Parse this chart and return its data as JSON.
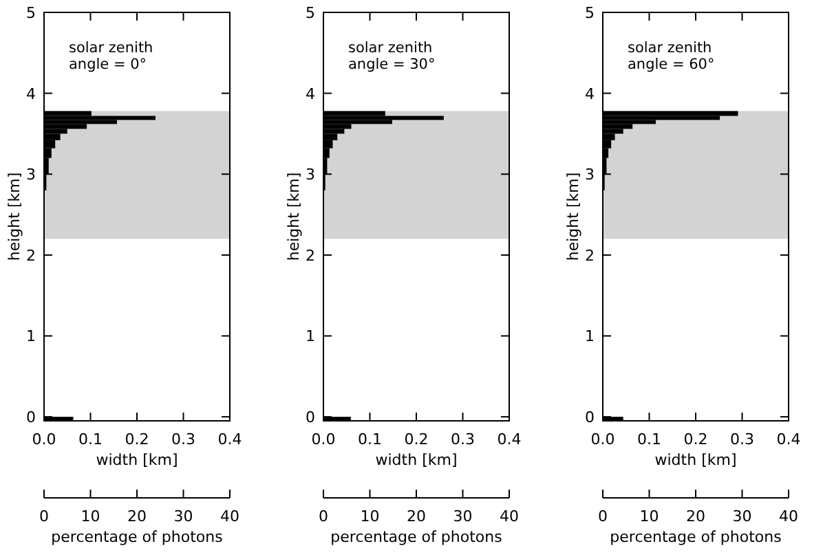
{
  "chart_data": [
    {
      "type": "histogram",
      "orientation": "horizontal",
      "annotations": [
        "solar zenith\nangle = 0°"
      ],
      "xlabel": "width [km]",
      "ylabel": "height [km]",
      "x2label": "percentage of photons",
      "xlim": [
        0,
        0.4
      ],
      "xticks": [
        {
          "value": 0,
          "label": "0.0"
        },
        {
          "value": 0.1,
          "label": "0.1"
        },
        {
          "value": 0.2,
          "label": "0.2"
        },
        {
          "value": 0.3,
          "label": "0.3"
        },
        {
          "value": 0.4,
          "label": "0.4"
        }
      ],
      "ylim": [
        -0.05,
        5
      ],
      "yticks": [
        0,
        1,
        2,
        3,
        4,
        5
      ],
      "x2lim": [
        0,
        40
      ],
      "x2ticks": [
        0,
        10,
        20,
        30,
        40
      ],
      "bands": [
        {
          "axis": "y",
          "from": 2.2,
          "to": 3.78,
          "color": "#d3d3d3"
        }
      ],
      "bins": [
        -0.05,
        0,
        2.8,
        3.0,
        3.2,
        3.32,
        3.42,
        3.5,
        3.56,
        3.62,
        3.67,
        3.72,
        3.78
      ],
      "series": [
        {
          "color": "#000000",
          "axis": "x2",
          "values": [
            6.3,
            null,
            0.5,
            1,
            1.6,
            2.4,
            3.5,
            5,
            9.2,
            15.7,
            24,
            10.2
          ]
        }
      ]
    },
    {
      "type": "histogram",
      "orientation": "horizontal",
      "annotations": [
        "solar zenith\nangle = 30°"
      ],
      "xlabel": "width [km]",
      "ylabel": "height [km]",
      "x2label": "percentage of photons",
      "xlim": [
        0,
        0.4
      ],
      "xticks": [
        {
          "value": 0,
          "label": "0.0"
        },
        {
          "value": 0.1,
          "label": "0.1"
        },
        {
          "value": 0.2,
          "label": "0.2"
        },
        {
          "value": 0.3,
          "label": "0.3"
        },
        {
          "value": 0.4,
          "label": "0.4"
        }
      ],
      "ylim": [
        -0.05,
        5
      ],
      "yticks": [
        0,
        1,
        2,
        3,
        4,
        5
      ],
      "x2lim": [
        0,
        40
      ],
      "x2ticks": [
        0,
        10,
        20,
        30,
        40
      ],
      "bands": [
        {
          "axis": "y",
          "from": 2.2,
          "to": 3.78,
          "color": "#d3d3d3"
        }
      ],
      "bins": [
        -0.05,
        0,
        2.6,
        2.8,
        3.0,
        3.2,
        3.32,
        3.42,
        3.5,
        3.56,
        3.62,
        3.67,
        3.72,
        3.78
      ],
      "series": [
        {
          "color": "#000000",
          "axis": "x2",
          "values": [
            5.9,
            null,
            0.1,
            0.4,
            0.8,
            1.3,
            2,
            3,
            4.5,
            6,
            14.8,
            25.9,
            13.3
          ]
        }
      ]
    },
    {
      "type": "histogram",
      "orientation": "horizontal",
      "annotations": [
        "solar zenith\nangle = 60°"
      ],
      "xlabel": "width [km]",
      "ylabel": "height [km]",
      "x2label": "percentage of photons",
      "xlim": [
        0,
        0.4
      ],
      "xticks": [
        {
          "value": 0,
          "label": "0.0"
        },
        {
          "value": 0.1,
          "label": "0.1"
        },
        {
          "value": 0.2,
          "label": "0.2"
        },
        {
          "value": 0.3,
          "label": "0.3"
        },
        {
          "value": 0.4,
          "label": "0.4"
        }
      ],
      "ylim": [
        -0.05,
        5
      ],
      "yticks": [
        0,
        1,
        2,
        3,
        4,
        5
      ],
      "x2lim": [
        0,
        40
      ],
      "x2ticks": [
        0,
        10,
        20,
        30,
        40
      ],
      "bands": [
        {
          "axis": "y",
          "from": 2.2,
          "to": 3.78,
          "color": "#d3d3d3"
        }
      ],
      "bins": [
        -0.05,
        0,
        2.8,
        3.0,
        3.2,
        3.32,
        3.42,
        3.5,
        3.56,
        3.62,
        3.67,
        3.72,
        3.78
      ],
      "series": [
        {
          "color": "#000000",
          "axis": "x2",
          "values": [
            4.4,
            null,
            0.4,
            0.8,
            1.2,
            1.8,
            2.6,
            4.4,
            6.4,
            11.4,
            25.2,
            29.1
          ]
        }
      ]
    }
  ]
}
